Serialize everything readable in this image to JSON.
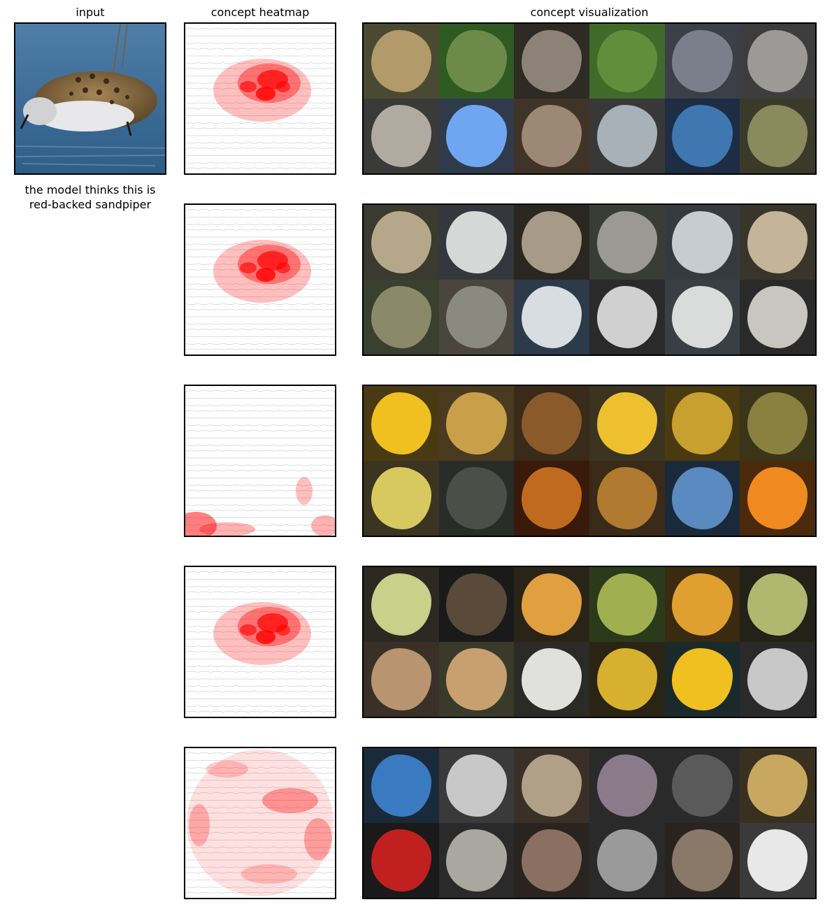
{
  "headers": {
    "input": "input",
    "heatmap": "concept heatmap",
    "visualization": "concept visualization"
  },
  "prediction": {
    "line1": "the model thinks this is",
    "line2": "red-backed sandpiper"
  },
  "colors": {
    "heat": "#ff0000",
    "frame": "#000000",
    "tile_dim": "#3a3a3a"
  },
  "concepts": [
    {
      "heat_pattern": "bird-body",
      "tiles": [
        {
          "bg": "#4a4a33",
          "fg": "#b39a6a"
        },
        {
          "bg": "#2f5a22",
          "fg": "#6e8a4a"
        },
        {
          "bg": "#2e2a24",
          "fg": "#8c8278"
        },
        {
          "bg": "#3f6a2a",
          "fg": "#5f8f3a"
        },
        {
          "bg": "#3c3f47",
          "fg": "#7a7f8c"
        },
        {
          "bg": "#3d3d3d",
          "fg": "#9c9a96"
        },
        {
          "bg": "#3a3a38",
          "fg": "#b0aaa0"
        },
        {
          "bg": "#2f3a4a",
          "fg": "#6fa6f2"
        },
        {
          "bg": "#403428",
          "fg": "#9c8874"
        },
        {
          "bg": "#383838",
          "fg": "#a8b0b8"
        },
        {
          "bg": "#1e2c44",
          "fg": "#3f77b0"
        },
        {
          "bg": "#3a3a2a",
          "fg": "#8a8a5e"
        }
      ]
    },
    {
      "heat_pattern": "bird-body",
      "tiles": [
        {
          "bg": "#3a3a2e",
          "fg": "#b5a88a"
        },
        {
          "bg": "#34383c",
          "fg": "#d6d8d8"
        },
        {
          "bg": "#2a2620",
          "fg": "#a79a86"
        },
        {
          "bg": "#3a3d36",
          "fg": "#9a9a92"
        },
        {
          "bg": "#363a40",
          "fg": "#c6ccd2"
        },
        {
          "bg": "#3a352a",
          "fg": "#c4b49a"
        },
        {
          "bg": "#3a4030",
          "fg": "#8a8a6a"
        },
        {
          "bg": "#4a463e",
          "fg": "#8a8a80"
        },
        {
          "bg": "#2c3a4a",
          "fg": "#d8dde2"
        },
        {
          "bg": "#2a2a2a",
          "fg": "#d0d0d0"
        },
        {
          "bg": "#3a3f44",
          "fg": "#dadcdc"
        },
        {
          "bg": "#2a2a2a",
          "fg": "#c8c6c0"
        }
      ]
    },
    {
      "heat_pattern": "bottom-left",
      "tiles": [
        {
          "bg": "#4a3a14",
          "fg": "#f0c020"
        },
        {
          "bg": "#4a3a20",
          "fg": "#c8a04a"
        },
        {
          "bg": "#3a2a1a",
          "fg": "#8a5a2a"
        },
        {
          "bg": "#3a3420",
          "fg": "#eec030"
        },
        {
          "bg": "#4a3a10",
          "fg": "#c8a030"
        },
        {
          "bg": "#3a3418",
          "fg": "#8a8040"
        },
        {
          "bg": "#3a3420",
          "fg": "#d8c860"
        },
        {
          "bg": "#2a2c2a",
          "fg": "#4a5048"
        },
        {
          "bg": "#3a1a0a",
          "fg": "#c06a20"
        },
        {
          "bg": "#3a2a18",
          "fg": "#b07a30"
        },
        {
          "bg": "#1a2a3a",
          "fg": "#5a8ac0"
        },
        {
          "bg": "#4a2a0a",
          "fg": "#f08a20"
        }
      ]
    },
    {
      "heat_pattern": "bird-body",
      "tiles": [
        {
          "bg": "#2a2a22",
          "fg": "#c8d08a"
        },
        {
          "bg": "#1a1a1a",
          "fg": "#5a4a3a"
        },
        {
          "bg": "#2a2418",
          "fg": "#e0a040"
        },
        {
          "bg": "#2a3a1a",
          "fg": "#a0b050"
        },
        {
          "bg": "#3a2a10",
          "fg": "#e0a030"
        },
        {
          "bg": "#222218",
          "fg": "#b0b870"
        },
        {
          "bg": "#3a3028",
          "fg": "#b89470"
        },
        {
          "bg": "#3a3a2a",
          "fg": "#c8a070"
        },
        {
          "bg": "#2a2a26",
          "fg": "#e0e0dc"
        },
        {
          "bg": "#2a2414",
          "fg": "#d8b030"
        },
        {
          "bg": "#1a2a2a",
          "fg": "#f0c020"
        },
        {
          "bg": "#2a2a2a",
          "fg": "#c8c8c8"
        }
      ]
    },
    {
      "heat_pattern": "scattered",
      "tiles": [
        {
          "bg": "#1a2a3a",
          "fg": "#3a7ac0"
        },
        {
          "bg": "#3a3a3a",
          "fg": "#c8c8c8"
        },
        {
          "bg": "#3a3028",
          "fg": "#b0a088"
        },
        {
          "bg": "#2a2a2a",
          "fg": "#8a7a8a"
        },
        {
          "bg": "#2a2a2a",
          "fg": "#5a5a5a"
        },
        {
          "bg": "#3a3020",
          "fg": "#c8a860"
        },
        {
          "bg": "#1a1a1a",
          "fg": "#c02020"
        },
        {
          "bg": "#2a2a2a",
          "fg": "#a8a8a0"
        },
        {
          "bg": "#2a2420",
          "fg": "#8a7060"
        },
        {
          "bg": "#2a2a2a",
          "fg": "#9a9a9a"
        },
        {
          "bg": "#2a2420",
          "fg": "#8a7868"
        },
        {
          "bg": "#3a3a3a",
          "fg": "#e8e8e8"
        }
      ]
    }
  ]
}
